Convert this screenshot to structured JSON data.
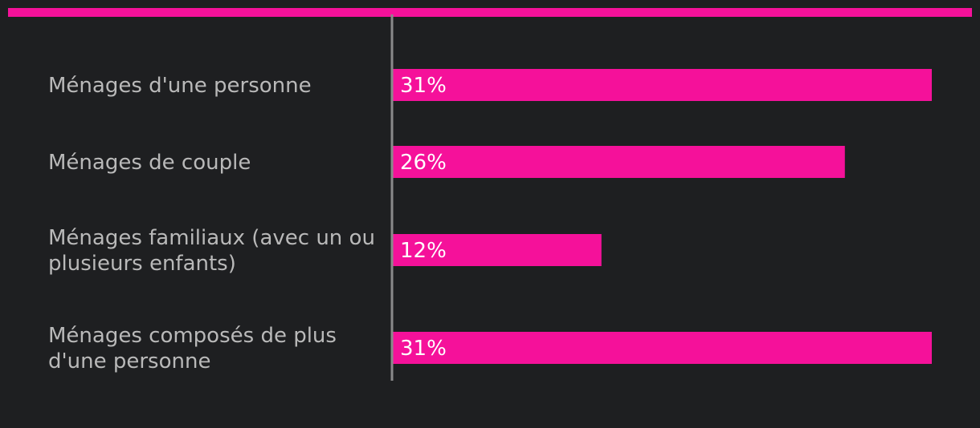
{
  "colors": {
    "background": "#1e1f21",
    "accent": "#f5119a",
    "axis": "#8a8a8a",
    "label": "#b9b9b9",
    "value_label": "#ffffff"
  },
  "chart_data": {
    "type": "bar",
    "orientation": "horizontal",
    "categories": [
      [
        "Ménages d'une personne"
      ],
      [
        "Ménages de couple"
      ],
      [
        "Ménages familiaux (avec un ou",
        "plusieurs enfants)"
      ],
      [
        "Ménages composés de plus",
        "d'une personne"
      ]
    ],
    "values": [
      31,
      26,
      12,
      31
    ],
    "value_labels": [
      "31%",
      "26%",
      "12%",
      "31%"
    ],
    "unit": "%",
    "xlim": [
      0,
      31
    ],
    "grid": false,
    "legend": "none"
  }
}
